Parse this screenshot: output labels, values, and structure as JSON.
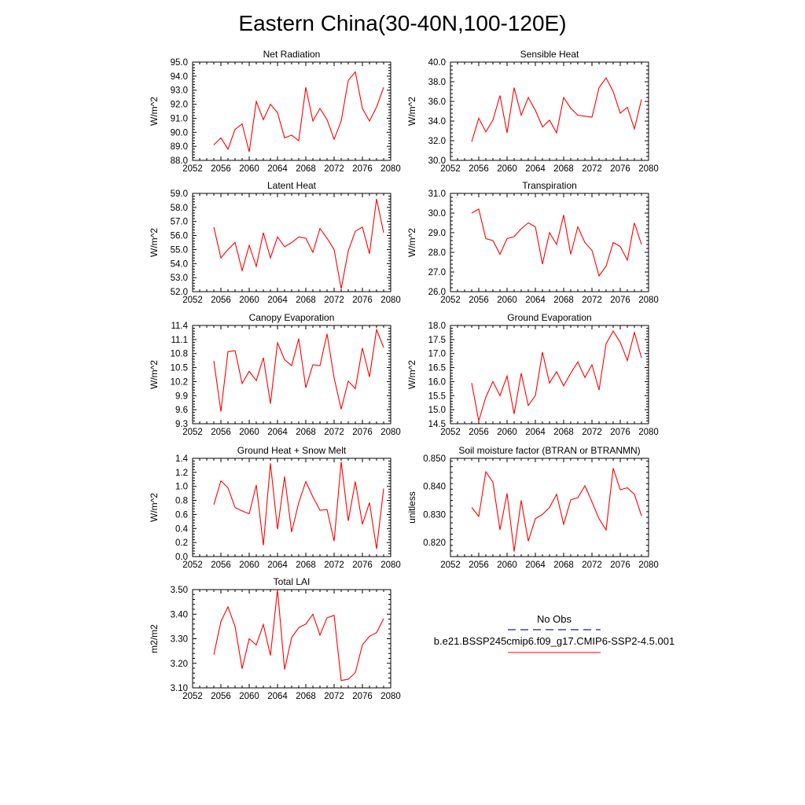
{
  "figure_title": "Eastern China(30-40N,100-120E)",
  "legend": {
    "obs_label": "No Obs",
    "obs_color": "#1a237e",
    "model_label": "b.e21.BSSP245cmip6.f09_g17.CMIP6-SSP2-4.5.001",
    "model_color": "#ff0000"
  },
  "chart_data": [
    {
      "type": "line",
      "title": "Net Radiation",
      "ylabel": "W/m^2",
      "xlim": [
        2052,
        2080
      ],
      "ylim": [
        88.0,
        95.0
      ],
      "xticks": [
        2052,
        2056,
        2060,
        2064,
        2068,
        2072,
        2076,
        2080
      ],
      "yticks": [
        88.0,
        89.0,
        90.0,
        91.0,
        92.0,
        93.0,
        94.0,
        95.0
      ],
      "ydecimals": 1,
      "x": [
        2055,
        2056,
        2057,
        2058,
        2059,
        2060,
        2061,
        2062,
        2063,
        2064,
        2065,
        2066,
        2067,
        2068,
        2069,
        2070,
        2071,
        2072,
        2073,
        2074,
        2075,
        2076,
        2077,
        2078,
        2079
      ],
      "series": [
        {
          "values": [
            89.1,
            89.6,
            88.8,
            90.2,
            90.6,
            88.6,
            92.2,
            90.9,
            92.0,
            91.4,
            89.6,
            89.8,
            89.4,
            93.2,
            90.8,
            91.7,
            90.9,
            89.5,
            90.8,
            93.7,
            94.3,
            91.7,
            90.8,
            91.8,
            93.2
          ]
        }
      ]
    },
    {
      "type": "line",
      "title": "Sensible Heat",
      "ylabel": "W/m^2",
      "xlim": [
        2052,
        2080
      ],
      "ylim": [
        30.0,
        40.0
      ],
      "xticks": [
        2052,
        2056,
        2060,
        2064,
        2068,
        2072,
        2076,
        2080
      ],
      "yticks": [
        30.0,
        32.0,
        34.0,
        36.0,
        38.0,
        40.0
      ],
      "ydecimals": 1,
      "x": [
        2055,
        2056,
        2057,
        2058,
        2059,
        2060,
        2061,
        2062,
        2063,
        2064,
        2065,
        2066,
        2067,
        2068,
        2069,
        2070,
        2071,
        2072,
        2073,
        2074,
        2075,
        2076,
        2077,
        2078,
        2079
      ],
      "series": [
        {
          "values": [
            31.9,
            34.3,
            32.9,
            34.1,
            36.6,
            32.8,
            37.4,
            34.6,
            36.4,
            35.1,
            33.4,
            34.1,
            32.8,
            36.4,
            35.3,
            34.6,
            34.5,
            34.4,
            37.4,
            38.4,
            37.0,
            34.8,
            35.4,
            33.2,
            36.2
          ]
        }
      ]
    },
    {
      "type": "line",
      "title": "Latent Heat",
      "ylabel": "W/m^2",
      "xlim": [
        2052,
        2080
      ],
      "ylim": [
        52.0,
        59.0
      ],
      "xticks": [
        2052,
        2056,
        2060,
        2064,
        2068,
        2072,
        2076,
        2080
      ],
      "yticks": [
        52.0,
        53.0,
        54.0,
        55.0,
        56.0,
        57.0,
        58.0,
        59.0
      ],
      "ydecimals": 1,
      "x": [
        2055,
        2056,
        2057,
        2058,
        2059,
        2060,
        2061,
        2062,
        2063,
        2064,
        2065,
        2066,
        2067,
        2068,
        2069,
        2070,
        2071,
        2072,
        2073,
        2074,
        2075,
        2076,
        2077,
        2078,
        2079
      ],
      "series": [
        {
          "values": [
            56.6,
            54.4,
            55.0,
            55.5,
            53.5,
            55.3,
            53.8,
            56.2,
            54.4,
            55.9,
            55.2,
            55.5,
            55.9,
            55.8,
            54.8,
            56.5,
            55.8,
            55.0,
            52.2,
            54.9,
            56.3,
            56.6,
            54.7,
            58.6,
            56.2
          ]
        }
      ]
    },
    {
      "type": "line",
      "title": "Transpiration",
      "ylabel": "W/m^2",
      "xlim": [
        2052,
        2080
      ],
      "ylim": [
        26.0,
        31.0
      ],
      "xticks": [
        2052,
        2056,
        2060,
        2064,
        2068,
        2072,
        2076,
        2080
      ],
      "yticks": [
        26.0,
        27.0,
        28.0,
        29.0,
        30.0,
        31.0
      ],
      "ydecimals": 1,
      "x": [
        2055,
        2056,
        2057,
        2058,
        2059,
        2060,
        2061,
        2062,
        2063,
        2064,
        2065,
        2066,
        2067,
        2068,
        2069,
        2070,
        2071,
        2072,
        2073,
        2074,
        2075,
        2076,
        2077,
        2078,
        2079
      ],
      "series": [
        {
          "values": [
            30.0,
            30.2,
            28.7,
            28.6,
            27.9,
            28.7,
            28.8,
            29.2,
            29.5,
            29.3,
            27.4,
            29.0,
            28.4,
            29.9,
            27.9,
            29.3,
            28.5,
            28.1,
            26.8,
            27.3,
            28.5,
            28.3,
            27.6,
            29.5,
            28.4
          ]
        }
      ]
    },
    {
      "type": "line",
      "title": "Canopy Evaporation",
      "ylabel": "W/m^2",
      "xlim": [
        2052,
        2080
      ],
      "ylim": [
        9.3,
        11.4
      ],
      "xticks": [
        2052,
        2056,
        2060,
        2064,
        2068,
        2072,
        2076,
        2080
      ],
      "yticks": [
        9.3,
        9.6,
        9.9,
        10.2,
        10.5,
        10.8,
        11.1,
        11.4
      ],
      "ydecimals": 1,
      "x": [
        2055,
        2056,
        2057,
        2058,
        2059,
        2060,
        2061,
        2062,
        2063,
        2064,
        2065,
        2066,
        2067,
        2068,
        2069,
        2070,
        2071,
        2072,
        2073,
        2074,
        2075,
        2076,
        2077,
        2078,
        2079
      ],
      "series": [
        {
          "values": [
            10.64,
            9.56,
            10.84,
            10.86,
            10.16,
            10.42,
            10.22,
            10.71,
            9.73,
            11.03,
            10.67,
            10.54,
            11.12,
            10.07,
            10.56,
            10.54,
            11.22,
            10.28,
            9.61,
            10.21,
            10.05,
            10.92,
            10.3,
            11.31,
            10.93
          ]
        }
      ]
    },
    {
      "type": "line",
      "title": "Ground Evaporation",
      "ylabel": "W/m^2",
      "xlim": [
        2052,
        2080
      ],
      "ylim": [
        14.5,
        18.0
      ],
      "xticks": [
        2052,
        2056,
        2060,
        2064,
        2068,
        2072,
        2076,
        2080
      ],
      "yticks": [
        14.5,
        15.0,
        15.5,
        16.0,
        16.5,
        17.0,
        17.5,
        18.0
      ],
      "ydecimals": 1,
      "x": [
        2055,
        2056,
        2057,
        2058,
        2059,
        2060,
        2061,
        2062,
        2063,
        2064,
        2065,
        2066,
        2067,
        2068,
        2069,
        2070,
        2071,
        2072,
        2073,
        2074,
        2075,
        2076,
        2077,
        2078,
        2079
      ],
      "series": [
        {
          "values": [
            15.95,
            14.6,
            15.45,
            16.0,
            15.5,
            16.2,
            14.85,
            16.3,
            15.15,
            15.5,
            17.05,
            15.95,
            16.35,
            15.85,
            16.3,
            16.7,
            16.15,
            16.6,
            15.7,
            17.35,
            17.8,
            17.4,
            16.75,
            17.75,
            16.85
          ]
        }
      ]
    },
    {
      "type": "line",
      "title": "Ground Heat + Snow Melt",
      "ylabel": "W/m^2",
      "xlim": [
        2052,
        2080
      ],
      "ylim": [
        0.0,
        1.4
      ],
      "xticks": [
        2052,
        2056,
        2060,
        2064,
        2068,
        2072,
        2076,
        2080
      ],
      "yticks": [
        0.0,
        0.2,
        0.4,
        0.6,
        0.8,
        1.0,
        1.2,
        1.4
      ],
      "ydecimals": 1,
      "x": [
        2055,
        2056,
        2057,
        2058,
        2059,
        2060,
        2061,
        2062,
        2063,
        2064,
        2065,
        2066,
        2067,
        2068,
        2069,
        2070,
        2071,
        2072,
        2073,
        2074,
        2075,
        2076,
        2077,
        2078,
        2079
      ],
      "series": [
        {
          "values": [
            0.74,
            1.08,
            0.98,
            0.7,
            0.65,
            0.61,
            1.02,
            0.16,
            1.33,
            0.39,
            1.14,
            0.35,
            0.77,
            1.07,
            0.85,
            0.66,
            0.67,
            0.22,
            1.35,
            0.51,
            1.07,
            0.46,
            0.77,
            0.11,
            0.97
          ]
        }
      ]
    },
    {
      "type": "line",
      "title": "Soil moisture factor (BTRAN or BTRANMN)",
      "ylabel": "unitless",
      "xlim": [
        2052,
        2080
      ],
      "ylim": [
        0.815,
        0.85
      ],
      "xticks": [
        2052,
        2056,
        2060,
        2064,
        2068,
        2072,
        2076,
        2080
      ],
      "yticks": [
        0.82,
        0.83,
        0.84,
        0.85
      ],
      "ydecimals": 3,
      "x": [
        2055,
        2056,
        2057,
        2058,
        2059,
        2060,
        2061,
        2062,
        2063,
        2064,
        2065,
        2066,
        2067,
        2068,
        2069,
        2070,
        2071,
        2072,
        2073,
        2074,
        2075,
        2076,
        2077,
        2078,
        2079
      ],
      "series": [
        {
          "values": [
            0.8325,
            0.8293,
            0.8452,
            0.8415,
            0.8245,
            0.8375,
            0.8168,
            0.835,
            0.8205,
            0.8285,
            0.83,
            0.8325,
            0.8372,
            0.8265,
            0.8352,
            0.836,
            0.8402,
            0.8345,
            0.8285,
            0.8245,
            0.8465,
            0.8388,
            0.8395,
            0.8372,
            0.8295
          ]
        }
      ]
    },
    {
      "type": "line",
      "title": "Total LAI",
      "ylabel": "m2/m2",
      "xlim": [
        2052,
        2080
      ],
      "ylim": [
        3.1,
        3.5
      ],
      "xticks": [
        2052,
        2056,
        2060,
        2064,
        2068,
        2072,
        2076,
        2080
      ],
      "yticks": [
        3.1,
        3.2,
        3.3,
        3.4,
        3.5
      ],
      "ydecimals": 2,
      "x": [
        2055,
        2056,
        2057,
        2058,
        2059,
        2060,
        2061,
        2062,
        2063,
        2064,
        2065,
        2066,
        2067,
        2068,
        2069,
        2070,
        2071,
        2072,
        2073,
        2074,
        2075,
        2076,
        2077,
        2078,
        2079
      ],
      "series": [
        {
          "values": [
            3.235,
            3.37,
            3.43,
            3.35,
            3.178,
            3.3,
            3.275,
            3.358,
            3.232,
            3.5,
            3.175,
            3.305,
            3.345,
            3.36,
            3.4,
            3.315,
            3.385,
            3.395,
            3.13,
            3.135,
            3.162,
            3.275,
            3.31,
            3.325,
            3.382
          ]
        }
      ]
    }
  ]
}
